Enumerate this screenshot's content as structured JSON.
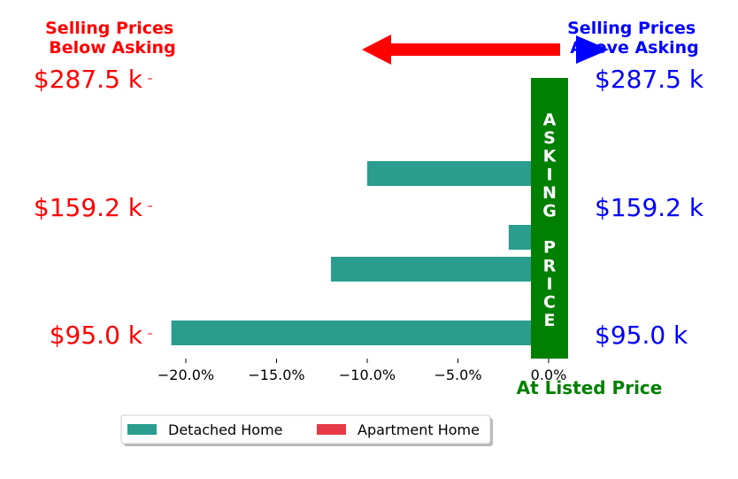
{
  "chart_data": {
    "type": "bar",
    "orientation": "horizontal",
    "x_unit": "%",
    "xlim": [
      -22,
      1
    ],
    "xticks": [
      -20,
      -15,
      -10,
      -5,
      0
    ],
    "xtick_labels": [
      "−20.0%",
      "−15.0%",
      "−10.0%",
      "−5.0%",
      "0.0%"
    ],
    "price_labels": [
      "$287.5 k",
      "$159.2 k",
      "$95.0 k"
    ],
    "below_asking_title": "Selling Prices\nBelow Asking",
    "above_asking_title": "Selling Prices\nAbove Asking",
    "asking_price_label": "ASKING PRICE",
    "listed_price_label": "At Listed Price",
    "series": [
      {
        "name": "Detached Home",
        "color": "#2a9d8f",
        "values": [
          0.6,
          0.6,
          -10.0,
          null,
          -2.2,
          -12.0,
          0.6,
          -20.8
        ]
      },
      {
        "name": "Apartment Home",
        "color": "#e63946",
        "values": [
          null,
          null,
          null,
          0.6,
          null,
          null,
          null,
          null
        ]
      }
    ],
    "colors": {
      "below": "#ff0000",
      "above": "#0000ff",
      "asking_band": "#008000"
    },
    "legend_location": "bottom-center"
  }
}
